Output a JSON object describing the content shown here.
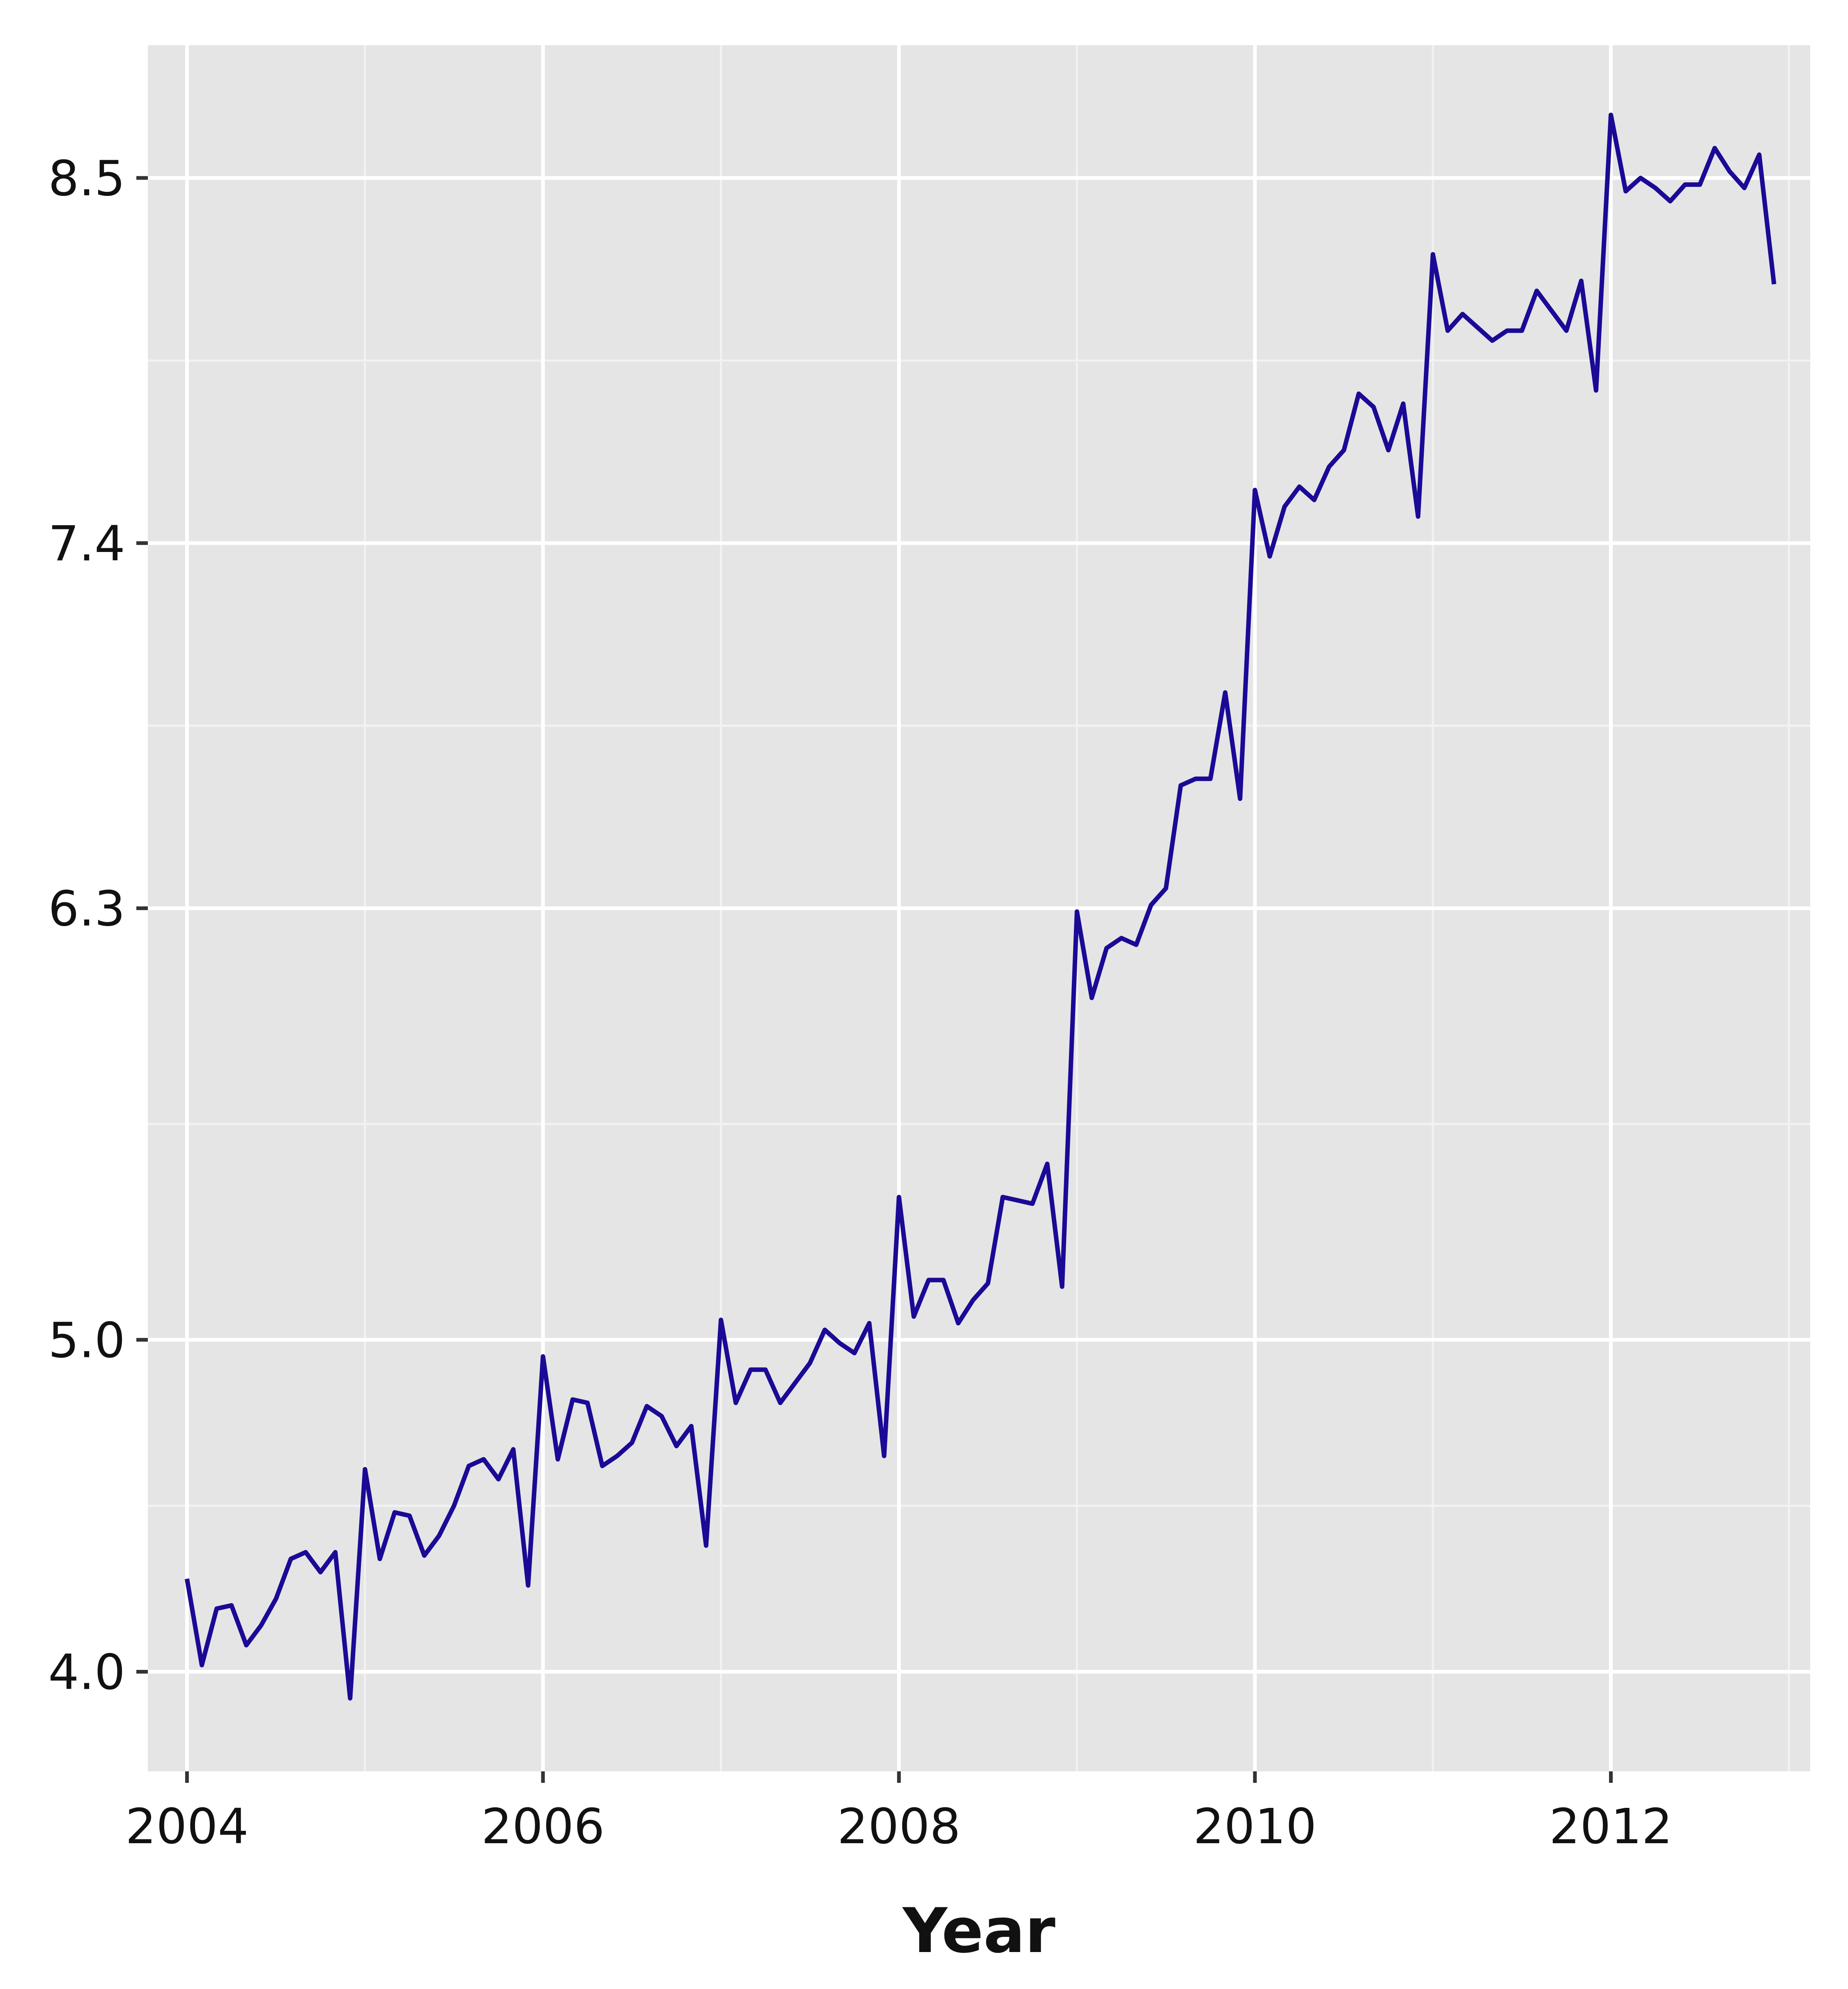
{
  "chart_data": {
    "type": "line",
    "title": "",
    "xlabel": "Year",
    "ylabel": "",
    "xlim": [
      2003.78,
      2013.12
    ],
    "ylim": [
      3.7,
      8.9
    ],
    "x_ticks": [
      2004,
      2006,
      2008,
      2010,
      2012
    ],
    "x_tick_labels": [
      "2004",
      "2006",
      "2008",
      "2010",
      "2012"
    ],
    "y_ticks": [
      4.0,
      5.0,
      6.3,
      7.4,
      8.5
    ],
    "y_tick_labels": [
      "4.0",
      "5.0",
      "6.3",
      "7.4",
      "8.5"
    ],
    "grid": true,
    "legend": "none",
    "colors": {
      "panel_background": "#E5E5E5",
      "grid_major": "#FFFFFF",
      "grid_minor": "#F2F2F2",
      "line": "#1A0A96",
      "text": "#111111"
    },
    "series": [
      {
        "x_start": 2004,
        "frequency": "monthly",
        "values": [
          4.28,
          4.02,
          4.19,
          4.2,
          4.08,
          4.14,
          4.22,
          4.34,
          4.36,
          4.3,
          4.36,
          3.92,
          4.61,
          4.34,
          4.48,
          4.47,
          4.35,
          4.41,
          4.5,
          4.62,
          4.64,
          4.58,
          4.67,
          4.26,
          4.95,
          4.64,
          4.82,
          4.81,
          4.62,
          4.65,
          4.69,
          4.8,
          4.77,
          4.68,
          4.74,
          4.38,
          5.06,
          4.81,
          4.91,
          4.91,
          4.81,
          4.87,
          4.93,
          5.03,
          4.99,
          4.96,
          5.05,
          4.65,
          5.43,
          5.07,
          5.18,
          5.18,
          5.05,
          5.12,
          5.17,
          5.43,
          5.42,
          5.41,
          5.53,
          5.16,
          6.29,
          6.03,
          6.18,
          6.21,
          6.19,
          6.31,
          6.36,
          6.67,
          6.69,
          6.69,
          6.95,
          6.63,
          7.56,
          7.36,
          7.51,
          7.57,
          7.53,
          7.63,
          7.68,
          7.85,
          7.81,
          7.68,
          7.82,
          7.48,
          8.27,
          8.04,
          8.09,
          8.05,
          8.01,
          8.04,
          8.04,
          8.16,
          8.1,
          8.04,
          8.19,
          7.86,
          8.69,
          8.46,
          8.5,
          8.47,
          8.43,
          8.48,
          8.48,
          8.59,
          8.52,
          8.47,
          8.57,
          8.18
        ]
      }
    ]
  }
}
